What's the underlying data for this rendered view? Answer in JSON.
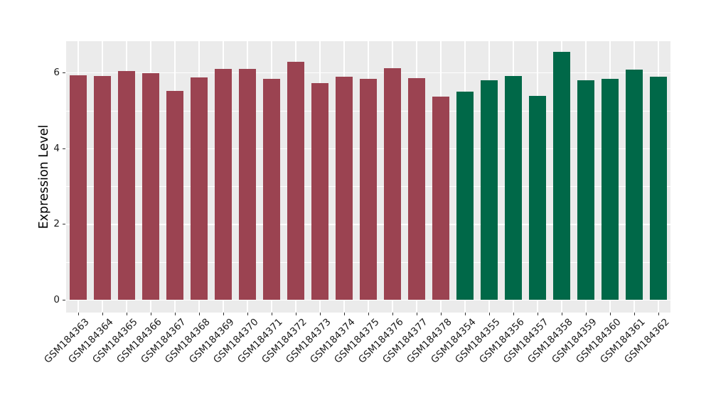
{
  "figure": {
    "background_color": "#ffffff",
    "panel_background_color": "#ebebeb",
    "gridline_color": "#ffffff",
    "text_color": "#1a1a1a"
  },
  "chart_data": {
    "type": "bar",
    "title": "",
    "xlabel": "",
    "ylabel": "Expression Level",
    "ylim": [
      0,
      6.84
    ],
    "yticks": [
      0,
      2,
      4,
      6
    ],
    "yticks_minor": [
      1,
      3,
      5
    ],
    "grid": true,
    "legend_position": "none",
    "group_colors": {
      "group_1": "#9b4351",
      "group_2": "#006848"
    },
    "categories": [
      "GSM184363",
      "GSM184364",
      "GSM184365",
      "GSM184366",
      "GSM184367",
      "GSM184368",
      "GSM184369",
      "GSM184370",
      "GSM184371",
      "GSM184372",
      "GSM184373",
      "GSM184374",
      "GSM184375",
      "GSM184376",
      "GSM184377",
      "GSM184378",
      "GSM184354",
      "GSM184355",
      "GSM184356",
      "GSM184357",
      "GSM184358",
      "GSM184359",
      "GSM184360",
      "GSM184361",
      "GSM184362"
    ],
    "values": [
      5.94,
      5.92,
      6.05,
      6.0,
      5.53,
      5.89,
      6.1,
      6.1,
      5.85,
      6.3,
      5.74,
      5.9,
      5.85,
      6.13,
      5.87,
      5.37,
      5.51,
      5.8,
      5.92,
      5.4,
      6.55,
      5.8,
      5.85,
      6.08,
      5.91
    ],
    "bar_colors": [
      "#9b4351",
      "#9b4351",
      "#9b4351",
      "#9b4351",
      "#9b4351",
      "#9b4351",
      "#9b4351",
      "#9b4351",
      "#9b4351",
      "#9b4351",
      "#9b4351",
      "#9b4351",
      "#9b4351",
      "#9b4351",
      "#9b4351",
      "#9b4351",
      "#006848",
      "#006848",
      "#006848",
      "#006848",
      "#006848",
      "#006848",
      "#006848",
      "#006848",
      "#006848"
    ]
  }
}
